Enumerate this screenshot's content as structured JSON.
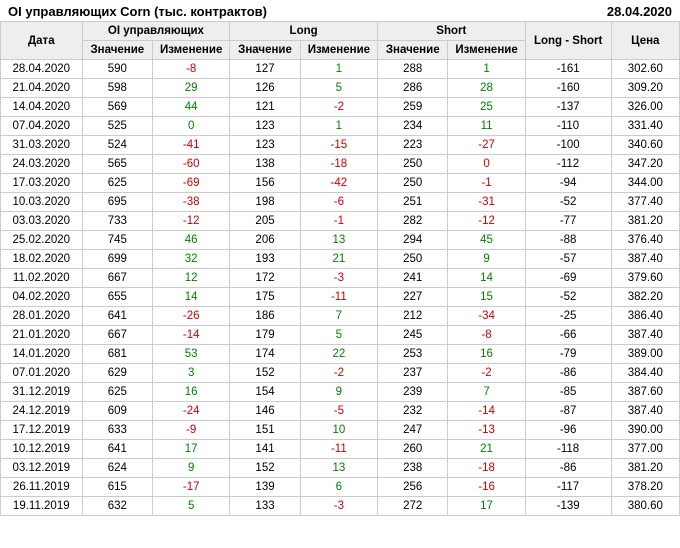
{
  "title": "OI управляющих Corn (тыс. контрактов)",
  "as_of": "28.04.2020",
  "headers": {
    "date": "Дата",
    "oi_group": "OI управляющих",
    "long_group": "Long",
    "short_group": "Short",
    "value": "Значение",
    "change": "Изменение",
    "long_short": "Long - Short",
    "price": "Цена"
  },
  "colors": {
    "pos": "#008000",
    "neg": "#cc0000",
    "header_bg": "#eeeeee",
    "border": "#cccccc"
  },
  "rows": [
    {
      "date": "28.04.2020",
      "oi_v": 590,
      "oi_c": -8,
      "long_v": 127,
      "long_c": 1,
      "short_v": 288,
      "short_c": 1,
      "ls": -161,
      "price": "302.60"
    },
    {
      "date": "21.04.2020",
      "oi_v": 598,
      "oi_c": 29,
      "long_v": 126,
      "long_c": 5,
      "short_v": 286,
      "short_c": 28,
      "ls": -160,
      "price": "309.20"
    },
    {
      "date": "14.04.2020",
      "oi_v": 569,
      "oi_c": 44,
      "long_v": 121,
      "long_c": -2,
      "short_v": 259,
      "short_c": 25,
      "ls": -137,
      "price": "326.00"
    },
    {
      "date": "07.04.2020",
      "oi_v": 525,
      "oi_c": 0,
      "oi_c_color": "pos",
      "long_v": 123,
      "long_c": 1,
      "short_v": 234,
      "short_c": 11,
      "ls": -110,
      "price": "331.40"
    },
    {
      "date": "31.03.2020",
      "oi_v": 524,
      "oi_c": -41,
      "long_v": 123,
      "long_c": -15,
      "short_v": 223,
      "short_c": -27,
      "ls": -100,
      "price": "340.60"
    },
    {
      "date": "24.03.2020",
      "oi_v": 565,
      "oi_c": -60,
      "long_v": 138,
      "long_c": -18,
      "short_v": 250,
      "short_c": 0,
      "short_c_color": "neg",
      "ls": -112,
      "price": "347.20"
    },
    {
      "date": "17.03.2020",
      "oi_v": 625,
      "oi_c": -69,
      "long_v": 156,
      "long_c": -42,
      "short_v": 250,
      "short_c": -1,
      "ls": -94,
      "price": "344.00"
    },
    {
      "date": "10.03.2020",
      "oi_v": 695,
      "oi_c": -38,
      "long_v": 198,
      "long_c": -6,
      "short_v": 251,
      "short_c": -31,
      "ls": -52,
      "price": "377.40"
    },
    {
      "date": "03.03.2020",
      "oi_v": 733,
      "oi_c": -12,
      "long_v": 205,
      "long_c": -1,
      "short_v": 282,
      "short_c": -12,
      "ls": -77,
      "price": "381.20"
    },
    {
      "date": "25.02.2020",
      "oi_v": 745,
      "oi_c": 46,
      "long_v": 206,
      "long_c": 13,
      "short_v": 294,
      "short_c": 45,
      "ls": -88,
      "price": "376.40"
    },
    {
      "date": "18.02.2020",
      "oi_v": 699,
      "oi_c": 32,
      "long_v": 193,
      "long_c": 21,
      "short_v": 250,
      "short_c": 9,
      "ls": -57,
      "price": "387.40"
    },
    {
      "date": "11.02.2020",
      "oi_v": 667,
      "oi_c": 12,
      "long_v": 172,
      "long_c": -3,
      "short_v": 241,
      "short_c": 14,
      "ls": -69,
      "price": "379.60"
    },
    {
      "date": "04.02.2020",
      "oi_v": 655,
      "oi_c": 14,
      "long_v": 175,
      "long_c": -11,
      "short_v": 227,
      "short_c": 15,
      "ls": -52,
      "price": "382.20"
    },
    {
      "date": "28.01.2020",
      "oi_v": 641,
      "oi_c": -26,
      "long_v": 186,
      "long_c": 7,
      "short_v": 212,
      "short_c": -34,
      "ls": -25,
      "price": "386.40"
    },
    {
      "date": "21.01.2020",
      "oi_v": 667,
      "oi_c": -14,
      "long_v": 179,
      "long_c": 5,
      "short_v": 245,
      "short_c": -8,
      "ls": -66,
      "price": "387.40"
    },
    {
      "date": "14.01.2020",
      "oi_v": 681,
      "oi_c": 53,
      "long_v": 174,
      "long_c": 22,
      "short_v": 253,
      "short_c": 16,
      "ls": -79,
      "price": "389.00"
    },
    {
      "date": "07.01.2020",
      "oi_v": 629,
      "oi_c": 3,
      "long_v": 152,
      "long_c": -2,
      "short_v": 237,
      "short_c": -2,
      "ls": -86,
      "price": "384.40"
    },
    {
      "date": "31.12.2019",
      "oi_v": 625,
      "oi_c": 16,
      "long_v": 154,
      "long_c": 9,
      "short_v": 239,
      "short_c": 7,
      "ls": -85,
      "price": "387.60"
    },
    {
      "date": "24.12.2019",
      "oi_v": 609,
      "oi_c": -24,
      "long_v": 146,
      "long_c": -5,
      "short_v": 232,
      "short_c": -14,
      "ls": -87,
      "price": "387.40"
    },
    {
      "date": "17.12.2019",
      "oi_v": 633,
      "oi_c": -9,
      "long_v": 151,
      "long_c": 10,
      "short_v": 247,
      "short_c": -13,
      "ls": -96,
      "price": "390.00"
    },
    {
      "date": "10.12.2019",
      "oi_v": 641,
      "oi_c": 17,
      "long_v": 141,
      "long_c": -11,
      "short_v": 260,
      "short_c": 21,
      "ls": -118,
      "price": "377.00"
    },
    {
      "date": "03.12.2019",
      "oi_v": 624,
      "oi_c": 9,
      "long_v": 152,
      "long_c": 13,
      "short_v": 238,
      "short_c": -18,
      "ls": -86,
      "price": "381.20"
    },
    {
      "date": "26.11.2019",
      "oi_v": 615,
      "oi_c": -17,
      "long_v": 139,
      "long_c": 6,
      "short_v": 256,
      "short_c": -16,
      "ls": -117,
      "price": "378.20"
    },
    {
      "date": "19.11.2019",
      "oi_v": 632,
      "oi_c": 5,
      "long_v": 133,
      "long_c": -3,
      "short_v": 272,
      "short_c": 17,
      "ls": -139,
      "price": "380.60"
    }
  ]
}
